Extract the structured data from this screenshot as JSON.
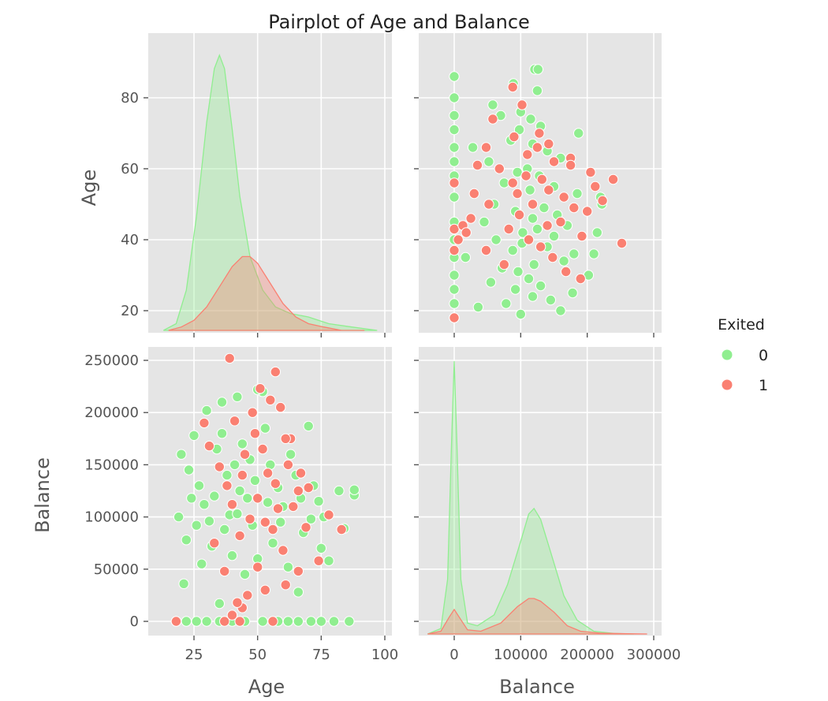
{
  "title": "Pairplot of Age and Balance",
  "colors": {
    "0": "#90ee90",
    "1": "#fa8072",
    "panel": "#e5e5e5"
  },
  "legend": {
    "title": "Exited",
    "placement": "right",
    "entries": [
      {
        "label": "0",
        "color": "#90ee90"
      },
      {
        "label": "1",
        "color": "#fa8072"
      }
    ]
  },
  "axes": {
    "age": {
      "label": "Age",
      "x_ticks": [
        "25",
        "50",
        "75",
        "100"
      ],
      "y_ticks": [
        "20",
        "40",
        "60",
        "80"
      ]
    },
    "balance": {
      "label": "Balance",
      "x_ticks": [
        "0",
        "100000",
        "200000",
        "300000"
      ],
      "y_ticks": [
        "0",
        "50000",
        "100000",
        "150000",
        "200000",
        "250000"
      ]
    }
  },
  "chart_data": {
    "type": "scatter",
    "title": "Pairplot of Age and Balance",
    "hue": "Exited",
    "grid": true,
    "legend_placement": "right",
    "variables": [
      {
        "name": "Age",
        "range": [
          12,
          98
        ],
        "ticks": [
          25,
          50,
          75,
          100
        ]
      },
      {
        "name": "Balance",
        "range": [
          -40000,
          300000
        ],
        "ticks": [
          0,
          50000,
          100000,
          150000,
          200000,
          250000,
          300000
        ]
      }
    ],
    "diagonal": {
      "type": "kde",
      "age_density": [
        {
          "name": "0",
          "x": [
            13,
            18,
            22,
            26,
            30,
            33,
            35,
            37,
            40,
            43,
            47,
            52,
            57,
            63,
            70,
            78,
            87,
            97
          ],
          "y": [
            0.0,
            0.002,
            0.012,
            0.034,
            0.062,
            0.078,
            0.082,
            0.078,
            0.06,
            0.04,
            0.022,
            0.012,
            0.007,
            0.005,
            0.004,
            0.002,
            0.001,
            0.0
          ]
        },
        {
          "name": "1",
          "x": [
            15,
            20,
            25,
            30,
            35,
            40,
            44,
            47,
            50,
            55,
            60,
            65,
            70,
            76,
            83,
            92
          ],
          "y": [
            0.0,
            0.001,
            0.003,
            0.007,
            0.013,
            0.019,
            0.022,
            0.022,
            0.02,
            0.014,
            0.008,
            0.004,
            0.002,
            0.001,
            0.0,
            0.0
          ]
        }
      ],
      "balance_density": [
        {
          "name": "0",
          "x": [
            -40000,
            -20000,
            -10000,
            -4000,
            0,
            4000,
            10000,
            20000,
            35000,
            60000,
            80000,
            100000,
            112000,
            120000,
            130000,
            145000,
            165000,
            185000,
            210000,
            240000,
            270000
          ],
          "y": [
            0.0,
            0.02,
            0.2,
            0.7,
            1.0,
            0.7,
            0.2,
            0.04,
            0.03,
            0.07,
            0.18,
            0.34,
            0.44,
            0.46,
            0.42,
            0.3,
            0.14,
            0.05,
            0.01,
            0.002,
            0.0
          ]
        },
        {
          "name": "1",
          "x": [
            -40000,
            -20000,
            -8000,
            0,
            8000,
            20000,
            40000,
            70000,
            95000,
            112000,
            120000,
            130000,
            150000,
            170000,
            190000,
            220000,
            260000,
            290000
          ],
          "y": [
            0.0,
            0.01,
            0.06,
            0.09,
            0.06,
            0.015,
            0.01,
            0.04,
            0.1,
            0.13,
            0.13,
            0.12,
            0.08,
            0.03,
            0.01,
            0.003,
            0.001,
            0.0
          ]
        }
      ]
    },
    "series": [
      {
        "name": "0",
        "points": [
          [
            18,
            0
          ],
          [
            22,
            0
          ],
          [
            26,
            0
          ],
          [
            30,
            0
          ],
          [
            35,
            0
          ],
          [
            40,
            0
          ],
          [
            45,
            0
          ],
          [
            52,
            0
          ],
          [
            58,
            0
          ],
          [
            62,
            0
          ],
          [
            66,
            0
          ],
          [
            71,
            0
          ],
          [
            75,
            0
          ],
          [
            80,
            0
          ],
          [
            86,
            0
          ],
          [
            88,
            121000
          ],
          [
            88,
            126000
          ],
          [
            84,
            89000
          ],
          [
            82,
            125000
          ],
          [
            78,
            58000
          ],
          [
            75,
            70000
          ],
          [
            74,
            115000
          ],
          [
            72,
            130000
          ],
          [
            70,
            187000
          ],
          [
            66,
            28000
          ],
          [
            62,
            52000
          ],
          [
            52,
            220000
          ],
          [
            50,
            222000
          ],
          [
            42,
            215000
          ],
          [
            36,
            210000
          ],
          [
            30,
            202000
          ],
          [
            25,
            178000
          ],
          [
            20,
            160000
          ],
          [
            19,
            100000
          ],
          [
            22,
            78000
          ],
          [
            21,
            36000
          ],
          [
            28,
            55000
          ],
          [
            35,
            17000
          ],
          [
            40,
            63000
          ],
          [
            48,
            92000
          ],
          [
            55,
            150000
          ],
          [
            60,
            110000
          ],
          [
            65,
            140000
          ],
          [
            68,
            85000
          ],
          [
            33,
            120000
          ],
          [
            38,
            140000
          ],
          [
            44,
            170000
          ],
          [
            27,
            130000
          ],
          [
            23,
            145000
          ],
          [
            46,
            118000
          ],
          [
            56,
            75000
          ],
          [
            31,
            96000
          ],
          [
            39,
            102000
          ],
          [
            63,
            160000
          ],
          [
            71,
            98000
          ],
          [
            53,
            185000
          ],
          [
            29,
            112000
          ],
          [
            34,
            165000
          ],
          [
            43,
            125000
          ],
          [
            49,
            135000
          ],
          [
            58,
            128000
          ],
          [
            24,
            118000
          ],
          [
            37,
            88000
          ],
          [
            42,
            103000
          ],
          [
            47,
            155000
          ],
          [
            26,
            92000
          ],
          [
            32,
            72000
          ],
          [
            50,
            60000
          ],
          [
            59,
            95000
          ],
          [
            67,
            118000
          ],
          [
            76,
            100000
          ],
          [
            45,
            45000
          ],
          [
            36,
            180000
          ],
          [
            41,
            150000
          ],
          [
            54,
            114000
          ]
        ]
      },
      {
        "name": "1",
        "points": [
          [
            18,
            0
          ],
          [
            37,
            0
          ],
          [
            43,
            0
          ],
          [
            56,
            0
          ],
          [
            40,
            6000
          ],
          [
            44,
            13000
          ],
          [
            39,
            252000
          ],
          [
            57,
            239000
          ],
          [
            51,
            223000
          ],
          [
            55,
            212000
          ],
          [
            59,
            205000
          ],
          [
            63,
            175000
          ],
          [
            67,
            142000
          ],
          [
            70,
            128000
          ],
          [
            83,
            88000
          ],
          [
            78,
            102000
          ],
          [
            74,
            58000
          ],
          [
            66,
            48000
          ],
          [
            61,
            35000
          ],
          [
            53,
            30000
          ],
          [
            46,
            25000
          ],
          [
            42,
            18000
          ],
          [
            37,
            48000
          ],
          [
            33,
            75000
          ],
          [
            29,
            190000
          ],
          [
            41,
            192000
          ],
          [
            49,
            180000
          ],
          [
            45,
            160000
          ],
          [
            38,
            130000
          ],
          [
            50,
            118000
          ],
          [
            54,
            142000
          ],
          [
            58,
            108000
          ],
          [
            47,
            98000
          ],
          [
            43,
            82000
          ],
          [
            60,
            68000
          ],
          [
            64,
            110000
          ],
          [
            52,
            165000
          ],
          [
            56,
            88000
          ],
          [
            48,
            200000
          ],
          [
            62,
            150000
          ],
          [
            35,
            148000
          ],
          [
            40,
            112000
          ],
          [
            57,
            132000
          ],
          [
            31,
            168000
          ],
          [
            44,
            140000
          ],
          [
            53,
            95000
          ],
          [
            66,
            125000
          ],
          [
            69,
            90000
          ],
          [
            61,
            175000
          ],
          [
            50,
            52000
          ]
        ]
      }
    ]
  }
}
